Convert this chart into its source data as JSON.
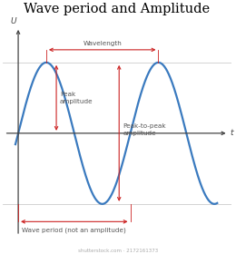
{
  "title": "Wave period and Amplitude",
  "title_fontsize": 10.5,
  "xlabel": "t",
  "ylabel": "U",
  "wave_color": "#3a7abf",
  "arrow_color": "#cc2222",
  "axis_color": "#444444",
  "text_color": "#555555",
  "bg_color": "#ffffff",
  "amplitude": 1.0,
  "annotation_fontsize": 5.2,
  "watermark": "shutterstock.com · 2172161373"
}
